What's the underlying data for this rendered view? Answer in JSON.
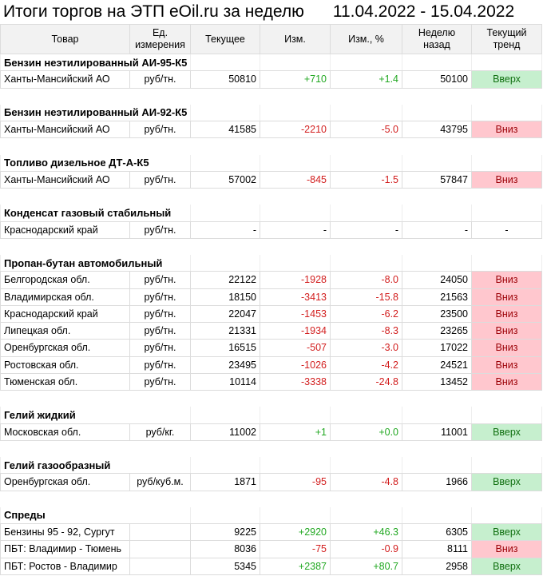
{
  "title": "Итоги торгов на ЭТП eOil.ru за неделю",
  "period": "11.04.2022 - 15.04.2022",
  "columns": {
    "product": "Товар",
    "unit_l1": "Ед.",
    "unit_l2": "измерения",
    "current": "Текущее",
    "change": "Изм.",
    "change_pct": "Изм., %",
    "week_ago_l1": "Неделю",
    "week_ago_l2": "назад",
    "trend_l1": "Текущий",
    "trend_l2": "тренд"
  },
  "colors": {
    "up_text": "#22a822",
    "down_text": "#d21e1e",
    "up_bg": "#c6efce",
    "down_bg": "#ffc7ce"
  },
  "sections": [
    {
      "name": "Бензин неэтилированный АИ-95-К5",
      "rows": [
        {
          "region": "Ханты-Мансийский АО",
          "unit": "руб/тн.",
          "current": "50810",
          "change": "+710",
          "pct": "+1.4",
          "week_ago": "50100",
          "trend": "Вверх",
          "dir": "up"
        }
      ]
    },
    {
      "name": "Бензин неэтилированный АИ-92-К5",
      "rows": [
        {
          "region": "Ханты-Мансийский АО",
          "unit": "руб/тн.",
          "current": "41585",
          "change": "-2210",
          "pct": "-5.0",
          "week_ago": "43795",
          "trend": "Вниз",
          "dir": "down"
        }
      ]
    },
    {
      "name": "Топливо дизельное ДТ-А-К5",
      "rows": [
        {
          "region": "Ханты-Мансийский АО",
          "unit": "руб/тн.",
          "current": "57002",
          "change": "-845",
          "pct": "-1.5",
          "week_ago": "57847",
          "trend": "Вниз",
          "dir": "down"
        }
      ]
    },
    {
      "name": "Конденсат газовый стабильный",
      "rows": [
        {
          "region": "Краснодарский край",
          "unit": "руб/тн.",
          "current": "-",
          "change": "-",
          "pct": "-",
          "week_ago": "-",
          "trend": "-",
          "dir": "none"
        }
      ]
    },
    {
      "name": "Пропан-бутан автомобильный",
      "rows": [
        {
          "region": "Белгородская обл.",
          "unit": "руб/тн.",
          "current": "22122",
          "change": "-1928",
          "pct": "-8.0",
          "week_ago": "24050",
          "trend": "Вниз",
          "dir": "down"
        },
        {
          "region": "Владимирская обл.",
          "unit": "руб/тн.",
          "current": "18150",
          "change": "-3413",
          "pct": "-15.8",
          "week_ago": "21563",
          "trend": "Вниз",
          "dir": "down"
        },
        {
          "region": "Краснодарский край",
          "unit": "руб/тн.",
          "current": "22047",
          "change": "-1453",
          "pct": "-6.2",
          "week_ago": "23500",
          "trend": "Вниз",
          "dir": "down"
        },
        {
          "region": "Липецкая обл.",
          "unit": "руб/тн.",
          "current": "21331",
          "change": "-1934",
          "pct": "-8.3",
          "week_ago": "23265",
          "trend": "Вниз",
          "dir": "down"
        },
        {
          "region": "Оренбургская обл.",
          "unit": "руб/тн.",
          "current": "16515",
          "change": "-507",
          "pct": "-3.0",
          "week_ago": "17022",
          "trend": "Вниз",
          "dir": "down"
        },
        {
          "region": "Ростовская обл.",
          "unit": "руб/тн.",
          "current": "23495",
          "change": "-1026",
          "pct": "-4.2",
          "week_ago": "24521",
          "trend": "Вниз",
          "dir": "down"
        },
        {
          "region": "Тюменская обл.",
          "unit": "руб/тн.",
          "current": "10114",
          "change": "-3338",
          "pct": "-24.8",
          "week_ago": "13452",
          "trend": "Вниз",
          "dir": "down"
        }
      ]
    },
    {
      "name": "Гелий жидкий",
      "rows": [
        {
          "region": "Московская обл.",
          "unit": "руб/кг.",
          "current": "11002",
          "change": "+1",
          "pct": "+0.0",
          "week_ago": "11001",
          "trend": "Вверх",
          "dir": "up"
        }
      ]
    },
    {
      "name": "Гелий газообразный",
      "rows": [
        {
          "region": "Оренбургская обл.",
          "unit": "руб/куб.м.",
          "current": "1871",
          "change": "-95",
          "pct": "-4.8",
          "week_ago": "1966",
          "trend": "Вверх",
          "dir": "up",
          "change_dir": "down"
        }
      ]
    },
    {
      "name": "Спреды",
      "rows": [
        {
          "region": "Бензины 95 - 92, Сургут",
          "unit": "",
          "current": "9225",
          "change": "+2920",
          "pct": "+46.3",
          "week_ago": "6305",
          "trend": "Вверх",
          "dir": "up"
        },
        {
          "region": "ПБТ: Владимир - Тюмень",
          "unit": "",
          "current": "8036",
          "change": "-75",
          "pct": "-0.9",
          "week_ago": "8111",
          "trend": "Вниз",
          "dir": "down"
        },
        {
          "region": "ПБТ: Ростов - Владимир",
          "unit": "",
          "current": "5345",
          "change": "+2387",
          "pct": "+80.7",
          "week_ago": "2958",
          "trend": "Вверх",
          "dir": "up"
        }
      ]
    }
  ]
}
